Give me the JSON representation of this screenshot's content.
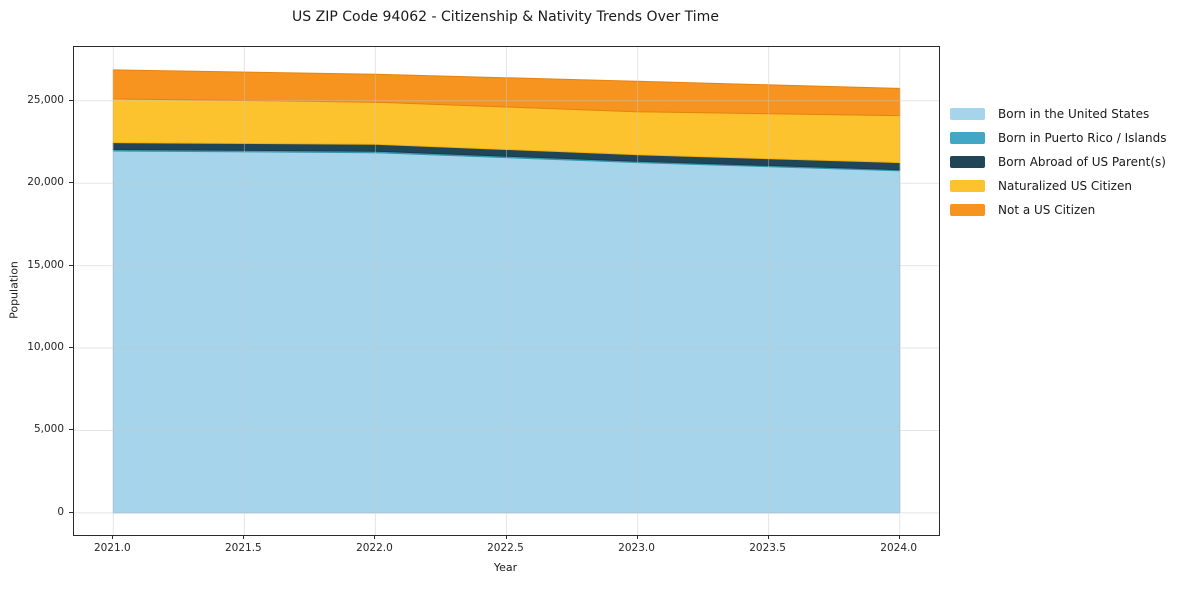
{
  "chart_data": {
    "type": "area",
    "stacked": true,
    "title": "US ZIP Code 94062 - Citizenship & Nativity Trends Over Time",
    "xlabel": "Year",
    "ylabel": "Population",
    "x": [
      2021,
      2022,
      2023,
      2024
    ],
    "series": [
      {
        "name": "Born in the United States",
        "values": [
          21950,
          21850,
          21250,
          20750
        ],
        "color": "#a6d4ea",
        "edge": "#8fc6e0"
      },
      {
        "name": "Born in Puerto Rico / Islands",
        "values": [
          90,
          90,
          80,
          70
        ],
        "color": "#41a7c5",
        "edge": "#3495b3"
      },
      {
        "name": "Born Abroad of US Parent(s)",
        "values": [
          420,
          420,
          400,
          430
        ],
        "color": "#1f4557",
        "edge": "#1a3c4c"
      },
      {
        "name": "Naturalized US Citizen",
        "values": [
          2650,
          2550,
          2600,
          2850
        ],
        "color": "#fdc32f",
        "edge": "#f0b110"
      },
      {
        "name": "Not a US Citizen",
        "values": [
          1760,
          1700,
          1850,
          1650
        ],
        "color": "#f6941f",
        "edge": "#e5830f"
      }
    ],
    "totals": [
      26870,
      26610,
      26180,
      25750
    ],
    "xlim": [
      2020.85,
      2024.15
    ],
    "ylim": [
      -1340,
      28260
    ],
    "xticks": {
      "values": [
        2021,
        2021.5,
        2022,
        2022.5,
        2023,
        2023.5,
        2024
      ],
      "labels": [
        "2021.0",
        "2021.5",
        "2022.0",
        "2022.5",
        "2023.0",
        "2023.5",
        "2024.0"
      ]
    },
    "yticks": {
      "values": [
        0,
        5000,
        10000,
        15000,
        20000,
        25000
      ],
      "labels": [
        "0",
        "5,000",
        "10,000",
        "15,000",
        "20,000",
        "25,000"
      ]
    },
    "grid": true,
    "grid_color": "#c8c8c8",
    "legend_position": "right-outside"
  }
}
